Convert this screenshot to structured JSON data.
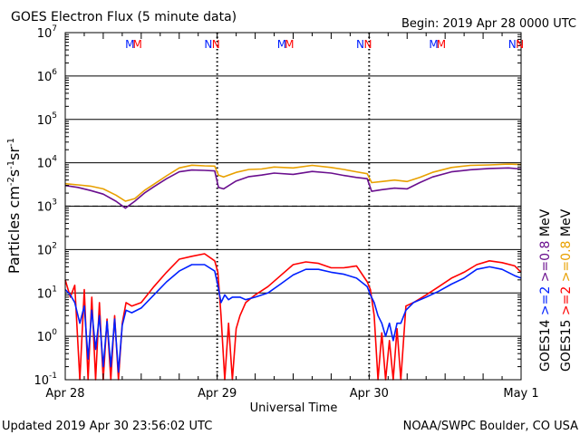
{
  "header": {
    "title": "GOES Electron Flux (5 minute data)",
    "begin": "Begin: 2019 Apr 28 0000 UTC"
  },
  "footer": {
    "updated": "Updated 2019 Apr 30 23:56:02 UTC",
    "credit": "NOAA/SWPC Boulder, CO USA"
  },
  "colors": {
    "goes14_2mev": "#0020ff",
    "goes15_2mev": "#ff0000",
    "goes14_08mev": "#6a0f8e",
    "goes15_08mev": "#e8a000",
    "axes": "#000000"
  },
  "chart_data": {
    "type": "line",
    "title": "GOES Electron Flux (5 minute data)",
    "xlabel": "Universal Time",
    "ylabel": "Particles cm-2s-1sr-1",
    "yscale": "log",
    "ylim": [
      0.1,
      10000000
    ],
    "xlim": [
      0,
      72
    ],
    "x_unit": "hours since 2019 Apr 28 0000 UTC",
    "x_ticks": [
      {
        "x": 0,
        "label": "Apr 28"
      },
      {
        "x": 24,
        "label": "Apr 29"
      },
      {
        "x": 48,
        "label": "Apr 30"
      },
      {
        "x": 72,
        "label": "May 1"
      }
    ],
    "y_ticks": [
      {
        "mant": "10",
        "exp": "-1"
      },
      {
        "mant": "10",
        "exp": "0"
      },
      {
        "mant": "10",
        "exp": "1"
      },
      {
        "mant": "10",
        "exp": "2"
      },
      {
        "mant": "10",
        "exp": "3"
      },
      {
        "mant": "10",
        "exp": "4"
      },
      {
        "mant": "10",
        "exp": "5"
      },
      {
        "mant": "10",
        "exp": "6"
      },
      {
        "mant": "10",
        "exp": "7"
      }
    ],
    "threshold_line": 1000,
    "markers": [
      {
        "x": 10.2,
        "label": "M",
        "color": "#0020ff"
      },
      {
        "x": 11.4,
        "label": "M",
        "color": "#ff0000"
      },
      {
        "x": 22.6,
        "label": "N",
        "color": "#0020ff"
      },
      {
        "x": 23.8,
        "label": "N",
        "color": "#ff0000"
      },
      {
        "x": 34.2,
        "label": "M",
        "color": "#0020ff"
      },
      {
        "x": 35.4,
        "label": "M",
        "color": "#ff0000"
      },
      {
        "x": 46.6,
        "label": "N",
        "color": "#0020ff"
      },
      {
        "x": 47.8,
        "label": "N",
        "color": "#ff0000"
      },
      {
        "x": 58.2,
        "label": "M",
        "color": "#0020ff"
      },
      {
        "x": 59.4,
        "label": "M",
        "color": "#ff0000"
      },
      {
        "x": 70.6,
        "label": "N",
        "color": "#0020ff"
      },
      {
        "x": 71.8,
        "label": "N",
        "color": "#ff0000"
      }
    ],
    "legend": [
      {
        "label": "GOES14",
        "color": "#000000"
      },
      {
        "label": ">=2",
        "color": "#0020ff"
      },
      {
        "label": ">=0.8",
        "color": "#6a0f8e"
      },
      {
        "label": "GOES15",
        "color": "#000000"
      },
      {
        "label": ">=2",
        "color": "#ff0000"
      },
      {
        "label": ">=0.8",
        "color": "#e8a000"
      },
      {
        "label": "MeV",
        "color": "#000000"
      },
      {
        "label": "MeV",
        "color": "#000000"
      }
    ],
    "series": [
      {
        "name": "GOES15 >=0.8 MeV",
        "color": "#e8a000",
        "x": [
          0,
          2,
          4,
          6,
          8,
          9.5,
          11,
          12.5,
          14,
          16,
          18,
          20,
          22,
          23.6,
          24.2,
          25,
          27,
          29,
          31,
          33,
          36,
          39,
          42,
          44,
          46,
          47.7,
          48.4,
          50,
          52,
          54,
          56,
          58,
          61,
          64,
          67,
          70,
          72
        ],
        "y": [
          3300,
          3100,
          2900,
          2500,
          1800,
          1300,
          1500,
          2300,
          3200,
          5000,
          7600,
          8800,
          8500,
          8400,
          5200,
          4700,
          6000,
          7000,
          7200,
          8000,
          7600,
          8700,
          7800,
          7000,
          6200,
          5600,
          3500,
          3700,
          4000,
          3700,
          4600,
          6000,
          7800,
          8700,
          8900,
          9300,
          9100
        ]
      },
      {
        "name": "GOES14 >=0.8 MeV",
        "color": "#6a0f8e",
        "x": [
          0,
          2,
          4,
          6,
          8,
          9.5,
          11,
          12.5,
          14,
          16,
          18,
          20,
          22,
          23.6,
          24.2,
          25,
          27,
          29,
          31,
          33,
          36,
          39,
          42,
          44,
          46,
          47.7,
          48.4,
          50,
          52,
          54,
          56,
          58,
          61,
          64,
          67,
          70,
          72
        ],
        "y": [
          3000,
          2700,
          2300,
          1900,
          1300,
          900,
          1300,
          2000,
          2800,
          4300,
          6200,
          6800,
          6700,
          6500,
          2700,
          2500,
          3800,
          4800,
          5200,
          5800,
          5400,
          6300,
          5800,
          5100,
          4600,
          4300,
          2200,
          2400,
          2600,
          2500,
          3500,
          4700,
          6200,
          6900,
          7400,
          7600,
          7200
        ]
      },
      {
        "name": "GOES15 >=2 MeV",
        "color": "#ff0000",
        "x": [
          0,
          0.8,
          1.5,
          2.3,
          3,
          3.6,
          4.2,
          4.8,
          5.4,
          6,
          6.6,
          7.2,
          7.8,
          8.4,
          9,
          9.6,
          10.5,
          12,
          14,
          16,
          18,
          20,
          22,
          23.6,
          24.1,
          24.6,
          25.2,
          25.8,
          26.4,
          27,
          27.6,
          28.5,
          30,
          32,
          34,
          36,
          38,
          40,
          42,
          44,
          46,
          47.7,
          48.2,
          48.8,
          49.4,
          50,
          50.6,
          51.2,
          51.8,
          52.4,
          53,
          53.8,
          55,
          57,
          59,
          61,
          63,
          65,
          67,
          69,
          71,
          72
        ],
        "y": [
          20,
          8,
          15,
          0.1,
          12,
          0.1,
          8,
          0.1,
          6,
          0.1,
          2.5,
          0.1,
          3,
          0.1,
          2,
          6,
          5,
          6,
          14,
          30,
          60,
          70,
          80,
          55,
          30,
          3,
          0.1,
          2,
          0.1,
          1.5,
          3,
          6,
          9,
          14,
          25,
          45,
          52,
          48,
          38,
          38,
          42,
          18,
          12,
          3,
          0.1,
          1.2,
          0.1,
          0.8,
          0.1,
          1.5,
          0.1,
          5,
          6,
          9,
          14,
          22,
          30,
          45,
          55,
          50,
          42,
          30
        ]
      },
      {
        "name": "GOES14 >=2 MeV",
        "color": "#0020ff",
        "x": [
          0,
          0.8,
          1.5,
          2.3,
          3,
          3.6,
          4.2,
          4.8,
          5.4,
          6,
          6.6,
          7.2,
          7.8,
          8.4,
          9,
          9.6,
          10.5,
          12,
          14,
          16,
          18,
          20,
          22,
          23.6,
          24.1,
          24.6,
          25.2,
          25.8,
          26.4,
          27,
          27.6,
          28.5,
          30,
          32,
          34,
          36,
          38,
          40,
          42,
          44,
          46,
          47.7,
          48.2,
          48.8,
          49.4,
          50,
          50.6,
          51.2,
          51.8,
          52.4,
          53,
          53.8,
          55,
          57,
          59,
          61,
          63,
          65,
          67,
          69,
          71,
          72
        ],
        "y": [
          12,
          9,
          6,
          2,
          5,
          0.3,
          4,
          0.5,
          3,
          0.2,
          2.2,
          0.2,
          2.5,
          0.15,
          1.8,
          4,
          3.5,
          4.5,
          9,
          18,
          32,
          45,
          45,
          32,
          15,
          6,
          9,
          7,
          8,
          8,
          8,
          7,
          8,
          10,
          16,
          26,
          35,
          35,
          30,
          27,
          22,
          14,
          9,
          6,
          3,
          2,
          1,
          2,
          0.8,
          2,
          2,
          4,
          6,
          8,
          11,
          16,
          22,
          35,
          40,
          35,
          25,
          22
        ]
      }
    ]
  }
}
